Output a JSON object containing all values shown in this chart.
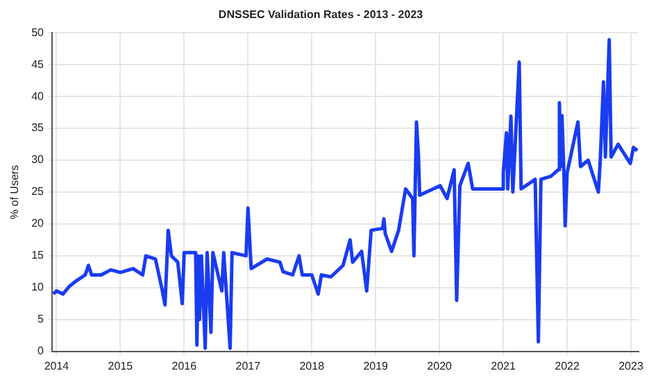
{
  "chart_data": {
    "type": "line",
    "title": "DNSSEC Validation Rates - 2013 - 2023",
    "ylabel": "% of Users",
    "xlim": [
      2013.93,
      2023.12
    ],
    "xticks": [
      2014,
      2015,
      2016,
      2017,
      2018,
      2019,
      2020,
      2021,
      2022,
      2023
    ],
    "ylim": [
      0,
      50
    ],
    "yticks": [
      0,
      5,
      10,
      15,
      20,
      25,
      30,
      35,
      40,
      45,
      50
    ],
    "grid": true,
    "legend": false,
    "marker": "none",
    "line_style": "solid",
    "series": [
      {
        "color": "#1a3cf0",
        "x": [
          2013.95,
          2014.0,
          2014.1,
          2014.2,
          2014.3,
          2014.45,
          2014.5,
          2014.55,
          2014.7,
          2014.85,
          2015.0,
          2015.2,
          2015.35,
          2015.4,
          2015.55,
          2015.65,
          2015.7,
          2015.75,
          2015.8,
          2015.9,
          2015.97,
          2016.0,
          2016.18,
          2016.2,
          2016.22,
          2016.24,
          2016.27,
          2016.33,
          2016.36,
          2016.42,
          2016.45,
          2016.59,
          2016.62,
          2016.72,
          2016.75,
          2016.97,
          2017.0,
          2017.05,
          2017.3,
          2017.5,
          2017.55,
          2017.7,
          2017.8,
          2017.85,
          2018.0,
          2018.1,
          2018.15,
          2018.3,
          2018.49,
          2018.6,
          2018.64,
          2018.78,
          2018.86,
          2018.93,
          2019.11,
          2019.13,
          2019.15,
          2019.25,
          2019.36,
          2019.47,
          2019.58,
          2019.6,
          2019.64,
          2019.67,
          2019.69,
          2020.01,
          2020.12,
          2020.23,
          2020.27,
          2020.32,
          2020.45,
          2020.52,
          2020.74,
          2020.99,
          2021.0,
          2021.05,
          2021.07,
          2021.12,
          2021.15,
          2021.25,
          2021.28,
          2021.5,
          2021.55,
          2021.59,
          2021.75,
          2021.86,
          2021.88,
          2021.9,
          2021.92,
          2021.95,
          2021.97,
          2022.0,
          2022.17,
          2022.21,
          2022.33,
          2022.49,
          2022.52,
          2022.57,
          2022.6,
          2022.66,
          2022.69,
          2022.8,
          2022.99,
          2023.04,
          2023.1
        ],
        "values": [
          9,
          9.5,
          9,
          10.2,
          11,
          12,
          13.5,
          12,
          12,
          12.8,
          12.4,
          13,
          12,
          15,
          14.5,
          9.9,
          7.3,
          19,
          15,
          14,
          7.5,
          15.5,
          15.5,
          1,
          15,
          5,
          15,
          0.5,
          15.5,
          3,
          15.5,
          9.5,
          15.5,
          0.5,
          15.5,
          15,
          22.5,
          13,
          14.5,
          14,
          12.5,
          12,
          15,
          12,
          12,
          9,
          12,
          11.7,
          13.5,
          17.5,
          14,
          15.7,
          9.5,
          19,
          19.3,
          20.8,
          18.5,
          15.7,
          19,
          25.5,
          24,
          15,
          36,
          31,
          24.5,
          26,
          24,
          28.5,
          8,
          26,
          29.5,
          25.5,
          25.5,
          25.5,
          28,
          34.3,
          25.5,
          36.9,
          25,
          45.4,
          25.5,
          27,
          1.5,
          27,
          27.5,
          28.5,
          39,
          29,
          37,
          28,
          19.7,
          28,
          36,
          29,
          30,
          25,
          30,
          42.3,
          30.5,
          48.9,
          30.5,
          32.5,
          29.5,
          32,
          31.5
        ]
      }
    ]
  }
}
